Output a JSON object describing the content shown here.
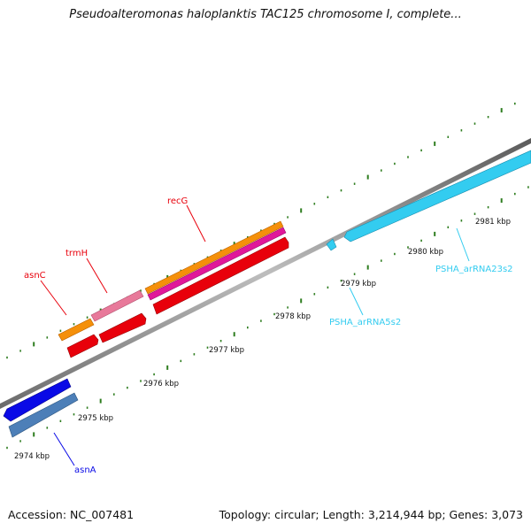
{
  "title": "Pseudoalteromonas haloplanktis TAC125 chromosome I, complete...",
  "footer": {
    "accession": "Accession: NC_007481",
    "summary": "Topology: circular; Length: 3,214,944 bp; Genes: 3,073"
  },
  "colors": {
    "backbone": "#8a8a8a",
    "tick": "#2e7d1f",
    "red": "#e8000b",
    "orange": "#f5900a",
    "pink": "#e8799a",
    "magenta": "#e0189a",
    "blue": "#0a0ae6",
    "steelblue": "#4d7fb8",
    "cyan": "#33ccf0"
  },
  "ticks": [
    {
      "label": "2974 kbp"
    },
    {
      "label": "2975 kbp"
    },
    {
      "label": "2976 kbp"
    },
    {
      "label": "2977 kbp"
    },
    {
      "label": "2978 kbp"
    },
    {
      "label": "2979 kbp"
    },
    {
      "label": "2980 kbp"
    },
    {
      "label": "2981 kbp"
    }
  ],
  "genes": [
    {
      "label": "asnA",
      "color": "#0a0ae6"
    },
    {
      "label": "asnC",
      "color": "#e8000b"
    },
    {
      "label": "trmH",
      "color": "#e8000b"
    },
    {
      "label": "recG",
      "color": "#e8000b"
    },
    {
      "label": "PSHA_arRNA5s2",
      "color": "#33ccf0"
    },
    {
      "label": "PSHA_arRNA23s2",
      "color": "#33ccf0"
    }
  ]
}
